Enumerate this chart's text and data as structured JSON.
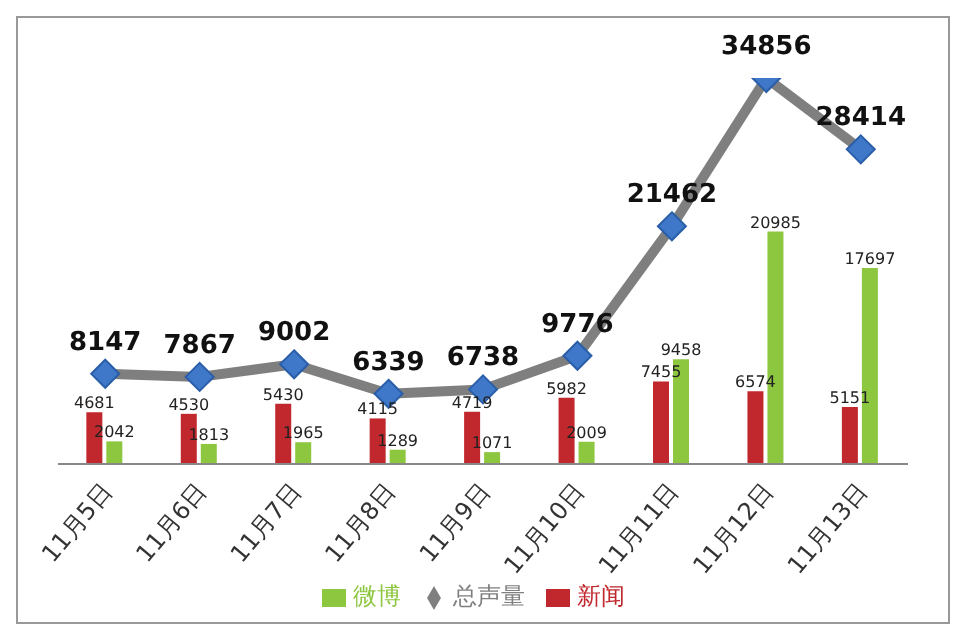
{
  "chart_data": {
    "type": "bar",
    "categories": [
      "11月5日",
      "11月6日",
      "11月7日",
      "11月8日",
      "11月9日",
      "11月10日",
      "11月11日",
      "11月12日",
      "11月13日"
    ],
    "series": [
      {
        "name": "新闻",
        "color": "#c0282d",
        "values": [
          4681,
          4530,
          5430,
          4115,
          4719,
          5982,
          7455,
          6574,
          5151
        ]
      },
      {
        "name": "微博",
        "color": "#8dc63f",
        "values": [
          2042,
          1813,
          1965,
          1289,
          1071,
          2009,
          9458,
          20985,
          17697
        ]
      },
      {
        "name": "总声量",
        "type": "line",
        "color": "#7f7f7f",
        "values": [
          8147,
          7867,
          9002,
          6339,
          6738,
          9776,
          21462,
          34856,
          28414
        ]
      }
    ],
    "tick_labels": "x",
    "data_labels": true,
    "legend": "bottom",
    "grid": false,
    "marker": "diamond"
  }
}
